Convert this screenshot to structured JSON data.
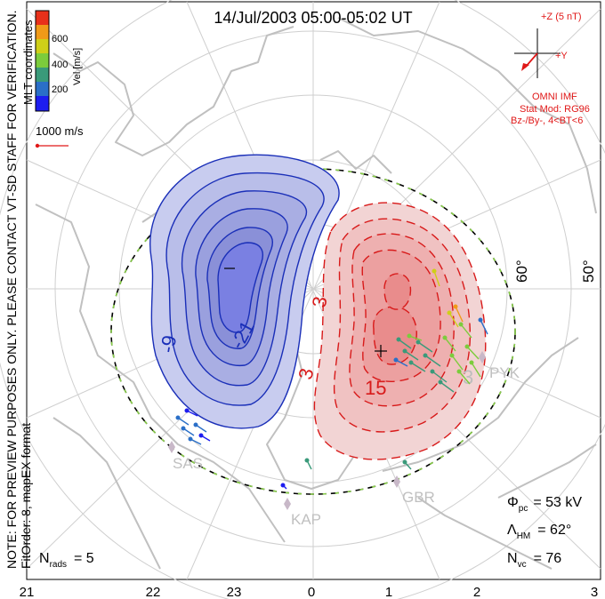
{
  "title": "14/Jul/2003 05:00-05:02 UT",
  "side_note_line1": "NOTE: FOR PREVIEW PURPOSES ONLY. PLEASE CONTACT VT-SD STAFF FOR VERIFICATION.",
  "side_note_line2": "FitOrder: 8, mapEX format",
  "coords_label": "MLT coordinates",
  "colorbar": {
    "label": "Vel [m/s]",
    "ticks": [
      "600",
      "400",
      "200"
    ],
    "colors": [
      "#1d1df0",
      "#2a6fc8",
      "#3a9a7a",
      "#7ccc3c",
      "#cfcf18",
      "#f09a18",
      "#e8301a"
    ]
  },
  "scale_vector_label": "1000 m/s",
  "imf": {
    "z_label": "+Z (5 nT)",
    "y_label": "+Y",
    "source": "OMNI IMF",
    "model_line1": "Stat Mod: RG96",
    "model_line2": "Bz-/By-, 4<BT<6",
    "color": "#e01818"
  },
  "lat_labels": [
    "60°",
    "50°"
  ],
  "contour_labels": {
    "neg": [
      "-9",
      "-21"
    ],
    "pos": [
      "3",
      "3",
      "15"
    ],
    "extra": "3"
  },
  "stations": [
    "SAS",
    "KAP",
    "GBR",
    "PYK"
  ],
  "stats": {
    "phi_label": "Φ",
    "phi_sub": "pc",
    "phi_value": "= 53 kV",
    "lambda_label": "Λ",
    "lambda_sub": "HM",
    "lambda_value": "= 62°",
    "nvc_label": "N",
    "nvc_sub": "vc",
    "nvc_value": "= 76",
    "nrads_label": "N",
    "nrads_sub": "rads",
    "nrads_value": "= 5"
  },
  "mlt_ticks": [
    "21",
    "22",
    "23",
    "0",
    "1",
    "2",
    "3"
  ],
  "colors": {
    "negative": "#1a2fb8",
    "positive": "#d81a1a",
    "grid": "#c8c8c8",
    "coast": "#c0c0c0"
  }
}
